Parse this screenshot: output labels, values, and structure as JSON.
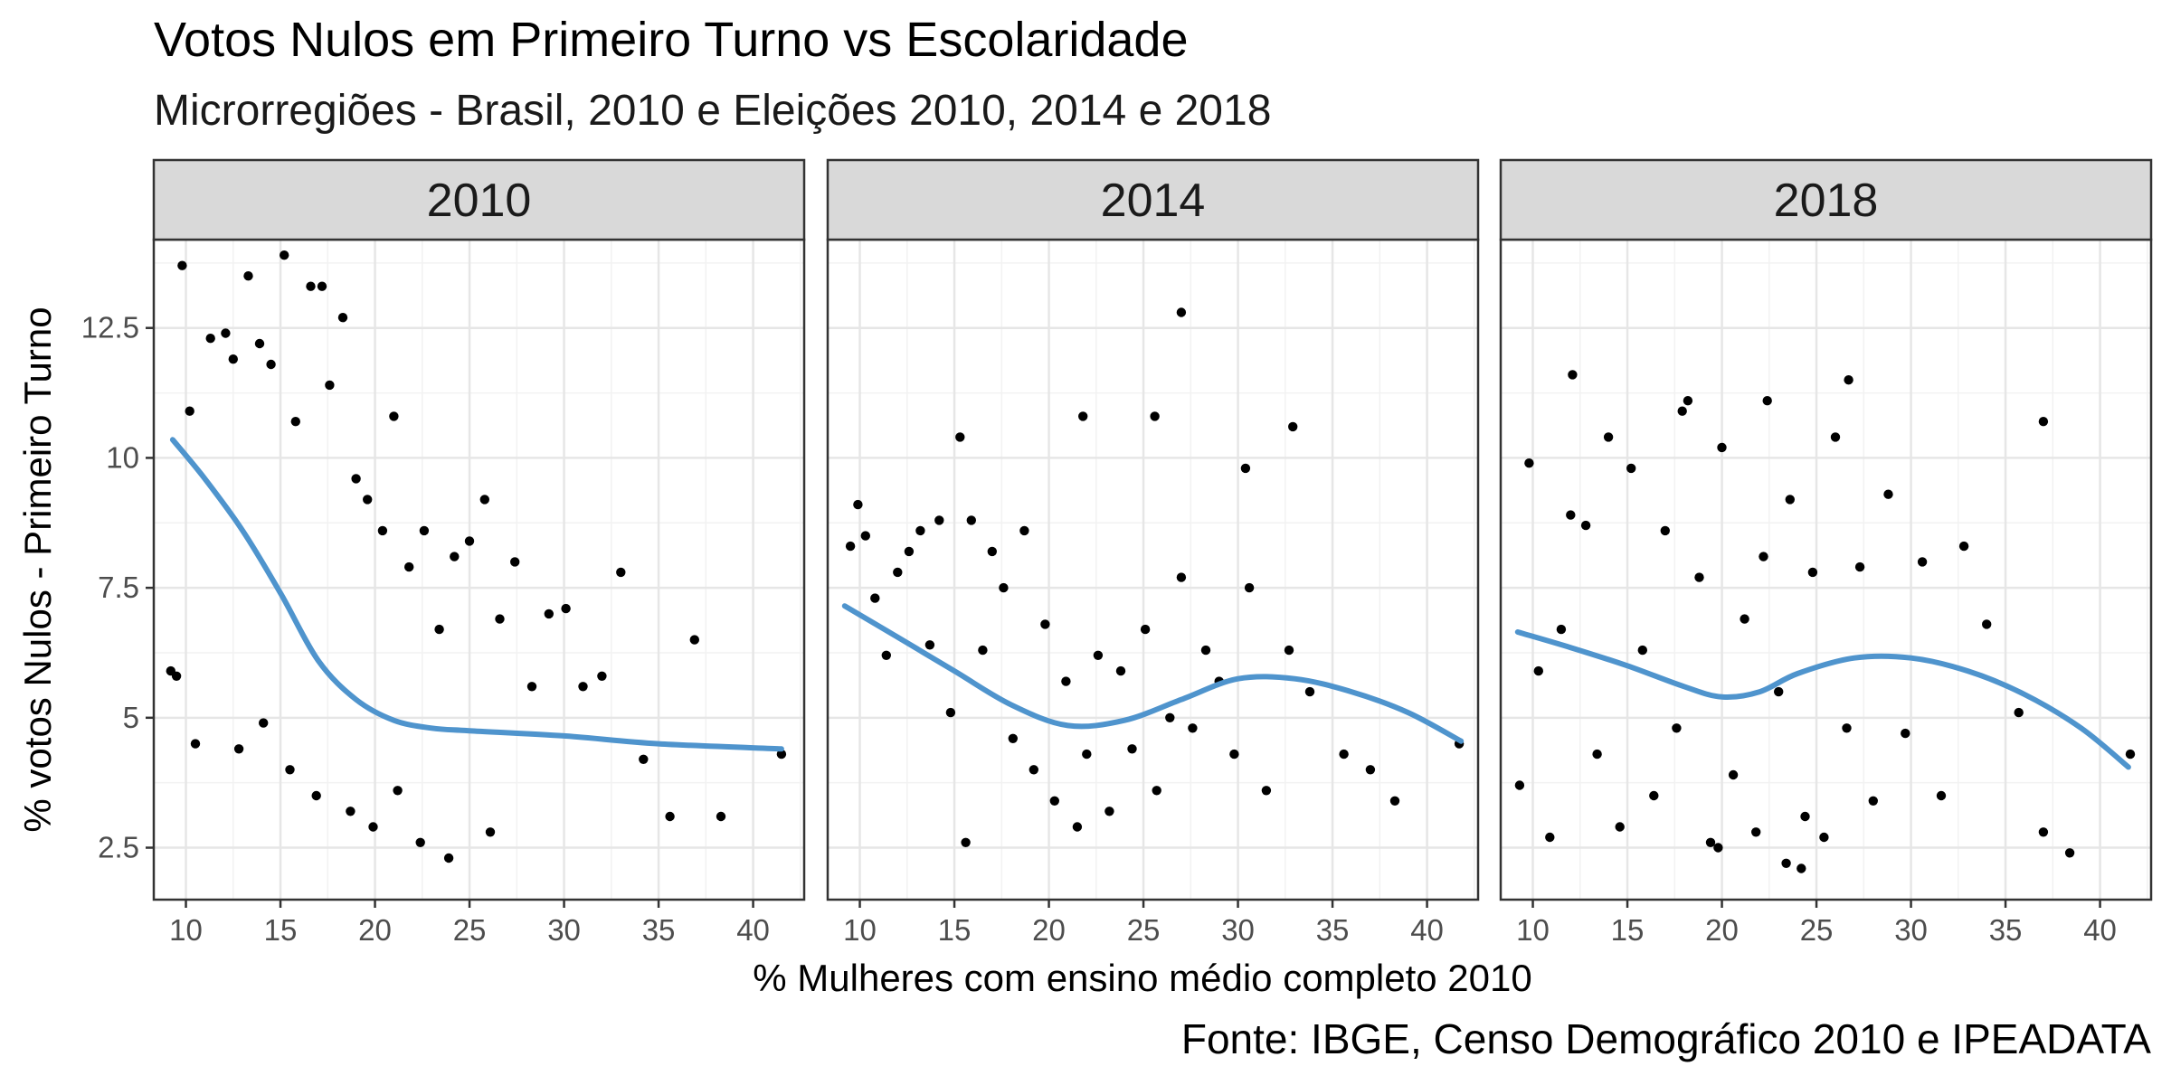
{
  "chart_data": {
    "type": "scatter",
    "title": "Votos Nulos em Primeiro Turno vs Escolaridade",
    "subtitle": "Microrregiões - Brasil, 2010 e Eleições 2010, 2014 e 2018",
    "xlabel": "% Mulheres com ensino médio completo 2010",
    "ylabel": "% votos Nulos - Primeiro Turno",
    "caption": "Fonte: IBGE, Censo Demográfico 2010 e IPEADATA",
    "xlim": [
      8.3,
      42.7
    ],
    "ylim": [
      1.5,
      14.2
    ],
    "x_ticks": [
      10,
      15,
      20,
      25,
      30,
      35,
      40
    ],
    "x_tick_labels": [
      "10",
      "15",
      "20",
      "25",
      "30",
      "35",
      "40"
    ],
    "y_ticks": [
      2.5,
      5,
      7.5,
      10,
      12.5
    ],
    "y_tick_labels": [
      "2.5",
      "5",
      "7.5",
      "10",
      "12.5"
    ],
    "grid": true,
    "point_color": "#000000",
    "smooth_color": "#4F94CD",
    "panels": [
      {
        "label": "2010",
        "smooth": {
          "x": [
            9.3,
            11,
            13,
            15,
            17,
            19,
            21,
            23,
            25,
            30,
            35,
            41.5
          ],
          "y": [
            10.35,
            9.6,
            8.6,
            7.4,
            6.1,
            5.35,
            4.95,
            4.8,
            4.75,
            4.65,
            4.5,
            4.4
          ]
        },
        "points": {
          "x": [
            9.2,
            9.5,
            9.8,
            10.2,
            11.3,
            12.1,
            12.5,
            13.3,
            13.9,
            14.5,
            15.2,
            15.8,
            16.6,
            17.2,
            17.6,
            18.3,
            19.0,
            19.6,
            20.4,
            21.0,
            21.8,
            22.6,
            23.4,
            24.2,
            25.0,
            25.8,
            26.6,
            27.4,
            28.3,
            29.2,
            30.1,
            31.0,
            32.0,
            33.0,
            34.2,
            35.6,
            36.9,
            38.3,
            41.5,
            10.5,
            12.8,
            14.1,
            15.5,
            16.9,
            18.7,
            19.9,
            21.2,
            22.4,
            23.9,
            26.1
          ],
          "y": [
            5.9,
            5.8,
            13.7,
            10.9,
            12.3,
            12.4,
            11.9,
            13.5,
            12.2,
            11.8,
            13.9,
            10.7,
            13.3,
            13.3,
            11.4,
            12.7,
            9.6,
            9.2,
            8.6,
            10.8,
            7.9,
            8.6,
            6.7,
            8.1,
            8.4,
            9.2,
            6.9,
            8.0,
            5.6,
            7.0,
            7.1,
            5.6,
            5.8,
            7.8,
            4.2,
            3.1,
            6.5,
            3.1,
            4.3,
            4.5,
            4.4,
            4.9,
            4.0,
            3.5,
            3.2,
            2.9,
            3.6,
            2.6,
            2.3,
            2.8
          ]
        }
      },
      {
        "label": "2014",
        "smooth": {
          "x": [
            9.2,
            12,
            15,
            18,
            21,
            24,
            27,
            30,
            33,
            36,
            39,
            41.8
          ],
          "y": [
            7.15,
            6.55,
            5.9,
            5.25,
            4.85,
            4.95,
            5.35,
            5.75,
            5.75,
            5.5,
            5.1,
            4.55
          ]
        },
        "points": {
          "x": [
            9.5,
            9.9,
            10.3,
            10.8,
            11.4,
            12.0,
            12.6,
            13.2,
            13.7,
            14.2,
            14.8,
            15.3,
            15.9,
            16.5,
            17.0,
            17.6,
            18.1,
            18.7,
            19.2,
            19.8,
            20.3,
            20.9,
            21.5,
            22.0,
            22.6,
            23.2,
            23.8,
            24.4,
            25.1,
            25.7,
            26.4,
            27.0,
            27.6,
            28.3,
            29.0,
            29.8,
            30.6,
            31.5,
            32.7,
            33.8,
            35.6,
            37.0,
            38.3,
            41.7,
            15.6,
            21.8,
            25.6,
            27.0,
            30.4,
            32.9
          ],
          "y": [
            8.3,
            9.1,
            8.5,
            7.3,
            6.2,
            7.8,
            8.2,
            8.6,
            6.4,
            8.8,
            5.1,
            10.4,
            8.8,
            6.3,
            8.2,
            7.5,
            4.6,
            8.6,
            4.0,
            6.8,
            3.4,
            5.7,
            2.9,
            4.3,
            6.2,
            3.2,
            5.9,
            4.4,
            6.7,
            3.6,
            5.0,
            7.7,
            4.8,
            6.3,
            5.7,
            4.3,
            7.5,
            3.6,
            6.3,
            5.5,
            4.3,
            4.0,
            3.4,
            4.5,
            2.6,
            10.8,
            10.8,
            12.8,
            9.8,
            10.6
          ]
        }
      },
      {
        "label": "2018",
        "smooth": {
          "x": [
            9.2,
            12,
            15,
            18,
            20,
            22,
            24,
            27,
            30,
            33,
            36,
            39,
            41.5
          ],
          "y": [
            6.65,
            6.35,
            6.0,
            5.6,
            5.4,
            5.5,
            5.85,
            6.15,
            6.15,
            5.9,
            5.45,
            4.8,
            4.05
          ]
        },
        "points": {
          "x": [
            9.3,
            9.8,
            10.3,
            10.9,
            11.5,
            12.1,
            12.8,
            13.4,
            14.0,
            14.6,
            15.2,
            15.8,
            16.4,
            17.0,
            17.6,
            18.2,
            18.8,
            19.4,
            20.0,
            20.6,
            21.2,
            21.8,
            22.4,
            23.0,
            23.6,
            24.2,
            24.8,
            25.4,
            26.0,
            26.6,
            27.3,
            28.0,
            28.8,
            29.7,
            30.6,
            31.6,
            32.8,
            34.0,
            35.7,
            37.0,
            38.4,
            41.6,
            12.0,
            17.9,
            22.2,
            26.7,
            37.0,
            23.4,
            24.4,
            19.8
          ],
          "y": [
            3.7,
            9.9,
            5.9,
            2.7,
            6.7,
            11.6,
            8.7,
            4.3,
            10.4,
            2.9,
            9.8,
            6.3,
            3.5,
            8.6,
            4.8,
            11.1,
            7.7,
            2.6,
            10.2,
            3.9,
            6.9,
            2.8,
            11.1,
            5.5,
            9.2,
            2.1,
            7.8,
            2.7,
            10.4,
            4.8,
            7.9,
            3.4,
            9.3,
            4.7,
            8.0,
            3.5,
            8.3,
            6.8,
            5.1,
            2.8,
            2.4,
            4.3,
            8.9,
            10.9,
            8.1,
            11.5,
            10.7,
            2.2,
            3.1,
            2.5
          ]
        }
      }
    ]
  }
}
